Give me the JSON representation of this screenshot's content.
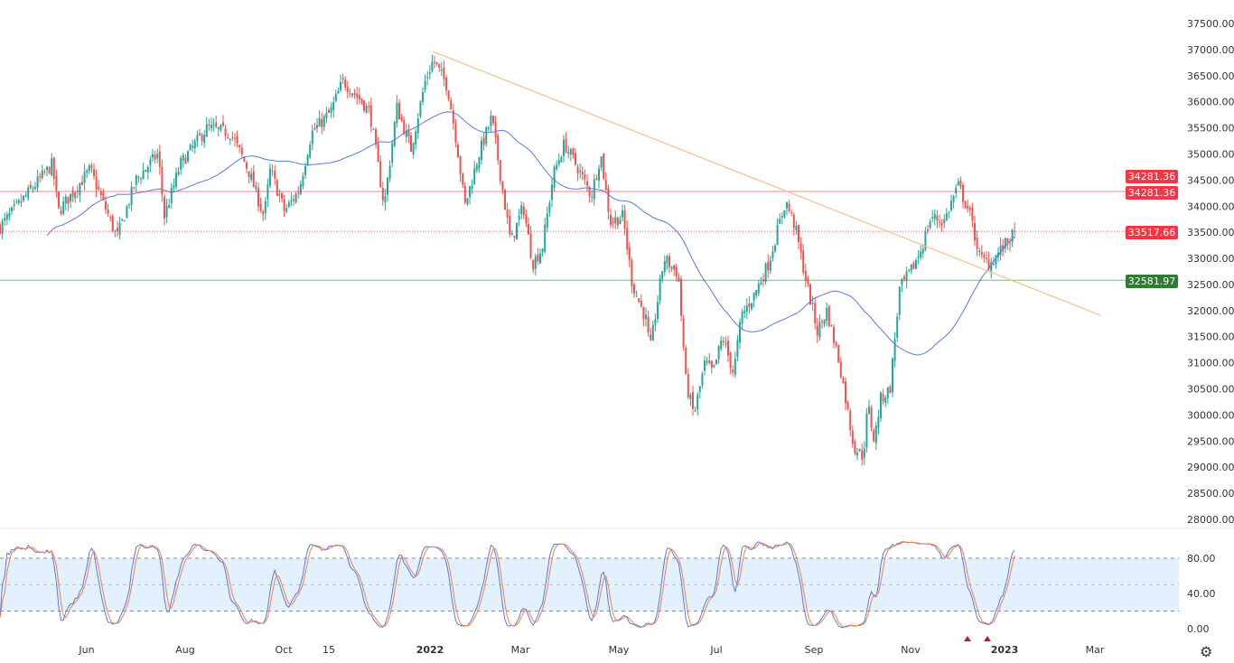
{
  "chart_data": {
    "type": "candlestick",
    "price_axis": {
      "min": 28000,
      "max": 37500,
      "ticks": [
        "28000.00",
        "28500.00",
        "29000.00",
        "29500.00",
        "30000.00",
        "30500.00",
        "31000.00",
        "31500.00",
        "32000.00",
        "32500.00",
        "33000.00",
        "33500.00",
        "34000.00",
        "34500.00",
        "35000.00",
        "35500.00",
        "36000.00",
        "36500.00",
        "37000.00",
        "37500.00"
      ]
    },
    "time_axis": {
      "ticks": [
        "Jun",
        "Aug",
        "Oct",
        "15",
        "2022",
        "Mar",
        "May",
        "Jul",
        "Sep",
        "Nov",
        "2023",
        "Mar"
      ]
    },
    "close_anchors": [
      [
        "2021-04-04",
        33600
      ],
      [
        "2021-04-15",
        34000
      ],
      [
        "2021-05-07",
        34800
      ],
      [
        "2021-05-11",
        33900
      ],
      [
        "2021-05-31",
        34700
      ],
      [
        "2021-06-17",
        33400
      ],
      [
        "2021-06-29",
        34500
      ],
      [
        "2021-07-13",
        35000
      ],
      [
        "2021-07-17",
        33800
      ],
      [
        "2021-07-27",
        34800
      ],
      [
        "2021-08-13",
        35500
      ],
      [
        "2021-08-28",
        35400
      ],
      [
        "2021-09-08",
        34700
      ],
      [
        "2021-09-18",
        33800
      ],
      [
        "2021-09-22",
        34700
      ],
      [
        "2021-10-01",
        33900
      ],
      [
        "2021-10-10",
        34300
      ],
      [
        "2021-10-18",
        35400
      ],
      [
        "2021-10-30",
        35800
      ],
      [
        "2021-11-07",
        36400
      ],
      [
        "2021-11-19",
        36000
      ],
      [
        "2021-11-24",
        35800
      ],
      [
        "2021-11-29",
        34800
      ],
      [
        "2021-12-03",
        34000
      ],
      [
        "2021-12-11",
        35900
      ],
      [
        "2021-12-20",
        35100
      ],
      [
        "2021-12-29",
        36400
      ],
      [
        "2022-01-03",
        36800
      ],
      [
        "2022-01-12",
        36300
      ],
      [
        "2022-01-18",
        35200
      ],
      [
        "2022-01-23",
        34000
      ],
      [
        "2022-02-01",
        35000
      ],
      [
        "2022-02-09",
        35700
      ],
      [
        "2022-02-15",
        34500
      ],
      [
        "2022-02-21",
        33300
      ],
      [
        "2022-03-01",
        34000
      ],
      [
        "2022-03-07",
        32900
      ],
      [
        "2022-03-13",
        33200
      ],
      [
        "2022-03-20",
        34600
      ],
      [
        "2022-03-27",
        35200
      ],
      [
        "2022-04-05",
        34700
      ],
      [
        "2022-04-13",
        34200
      ],
      [
        "2022-04-19",
        35000
      ],
      [
        "2022-04-25",
        33700
      ],
      [
        "2022-05-03",
        33800
      ],
      [
        "2022-05-09",
        32500
      ],
      [
        "2022-05-18",
        31800
      ],
      [
        "2022-05-20",
        31200
      ],
      [
        "2022-05-29",
        33000
      ],
      [
        "2022-06-07",
        32700
      ],
      [
        "2022-06-12",
        30600
      ],
      [
        "2022-06-17",
        30000
      ],
      [
        "2022-06-24",
        31000
      ],
      [
        "2022-06-29",
        30800
      ],
      [
        "2022-07-05",
        31500
      ],
      [
        "2022-07-12",
        30800
      ],
      [
        "2022-07-17",
        31900
      ],
      [
        "2022-07-25",
        32300
      ],
      [
        "2022-08-03",
        32900
      ],
      [
        "2022-08-14",
        34100
      ],
      [
        "2022-08-20",
        33600
      ],
      [
        "2022-08-26",
        32700
      ],
      [
        "2022-09-03",
        31600
      ],
      [
        "2022-09-09",
        32000
      ],
      [
        "2022-09-17",
        31000
      ],
      [
        "2022-09-26",
        29400
      ],
      [
        "2022-10-02",
        29200
      ],
      [
        "2022-10-05",
        30200
      ],
      [
        "2022-10-09",
        29500
      ],
      [
        "2022-10-13",
        30300
      ],
      [
        "2022-10-19",
        30500
      ],
      [
        "2022-10-25",
        32400
      ],
      [
        "2022-11-02",
        32800
      ],
      [
        "2022-11-08",
        33200
      ],
      [
        "2022-11-14",
        33800
      ],
      [
        "2022-11-22",
        33700
      ],
      [
        "2022-12-01",
        34400
      ],
      [
        "2022-12-08",
        33900
      ],
      [
        "2022-12-15",
        33000
      ],
      [
        "2022-12-21",
        32900
      ],
      [
        "2022-12-29",
        33200
      ],
      [
        "2023-01-07",
        33517.66
      ]
    ],
    "moving_average": {
      "color": "#5b7bd5"
    },
    "trendline": {
      "from": [
        "2022-01-03",
        36960
      ],
      "to": [
        "2023-03-01",
        31910
      ],
      "color": "#f7c08a"
    },
    "levels": [
      {
        "label": "34281.36",
        "value": 34281.36,
        "color": "#f23645",
        "style": "solid"
      },
      {
        "label": "33517.66",
        "value": 33517.66,
        "color": "#f23645",
        "style": "dotted"
      },
      {
        "label": "32581.97",
        "value": 32581.97,
        "color": "#2e7d32",
        "style": "solid"
      }
    ],
    "last_price_label": "34281.36",
    "oscillator": {
      "type": "stochastic",
      "ticks": [
        "80.00",
        "40.00",
        "0.00"
      ],
      "band": [
        20,
        80
      ],
      "mid": 50,
      "k_color": "#5b7bd5",
      "d_color": "#f08050"
    },
    "colors": {
      "up": "#26a69a",
      "down": "#ef5350"
    }
  },
  "settings_icon": "gear-icon"
}
